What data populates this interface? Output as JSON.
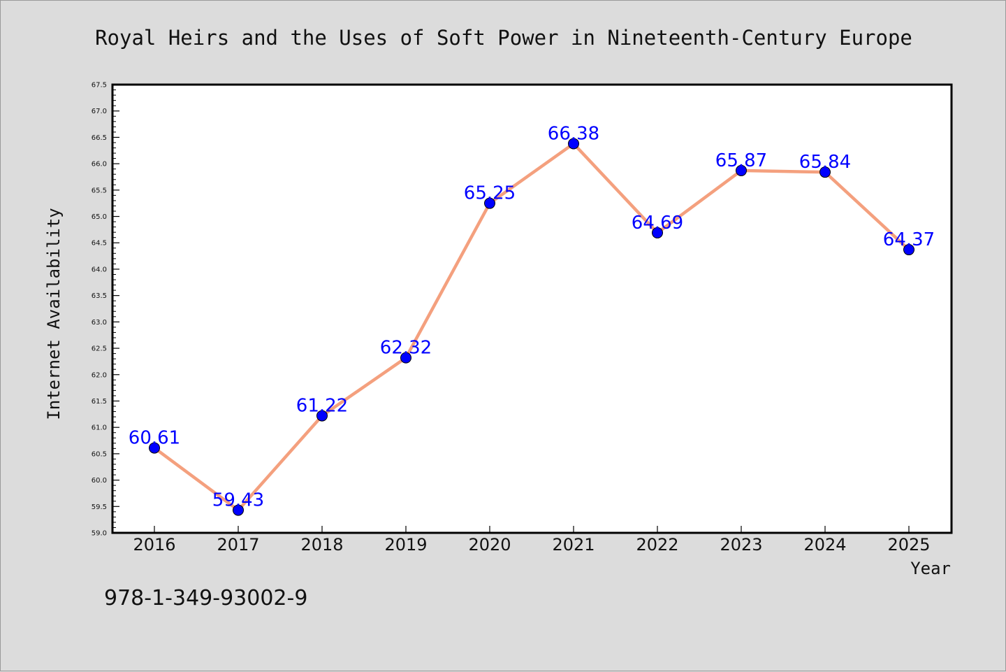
{
  "chart_data": {
    "type": "line",
    "title": "Royal Heirs and the Uses of Soft Power in Nineteenth-Century Europe",
    "xlabel": "Year",
    "ylabel": "Internet Availability",
    "x": [
      "2016",
      "2017",
      "2018",
      "2019",
      "2020",
      "2021",
      "2022",
      "2023",
      "2024",
      "2025"
    ],
    "series": [
      {
        "values": [
          60.61,
          59.43,
          61.22,
          62.32,
          65.25,
          66.38,
          64.69,
          65.87,
          65.84,
          64.37
        ],
        "labels": [
          "60.61",
          "59.43",
          "61.22",
          "62.32",
          "65.25",
          "66.38",
          "64.69",
          "65.87",
          "65.84",
          "64.37"
        ]
      }
    ],
    "ylim": [
      59.0,
      67.5
    ],
    "yticks": [
      "59.0",
      "59.5",
      "60.0",
      "60.5",
      "61.0",
      "61.5",
      "62.0",
      "62.5",
      "63.0",
      "63.5",
      "64.0",
      "64.5",
      "65.0",
      "65.5",
      "66.0",
      "66.5",
      "67.0",
      "67.5"
    ],
    "grid": false,
    "legend": "none",
    "colors": {
      "line": "#f4a07e",
      "marker": "#0000ff",
      "label": "#0000ff",
      "background": "#dcdcdc",
      "plot_background": "#ffffff"
    }
  },
  "footer": {
    "isbn": "978-1-349-93002-9"
  }
}
